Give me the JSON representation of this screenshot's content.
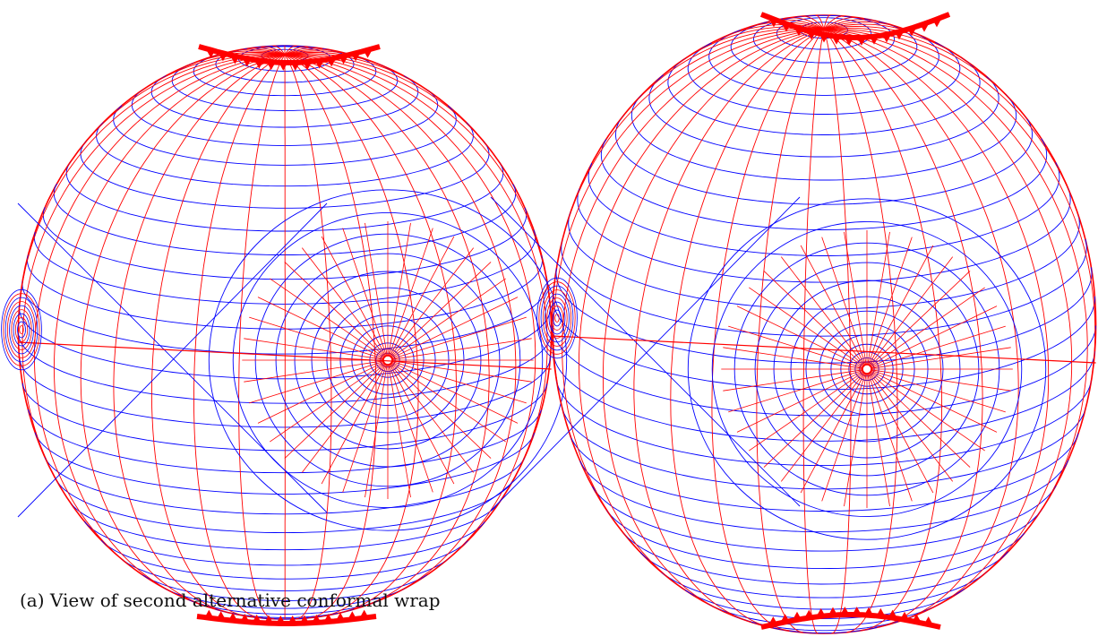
{
  "figure": {
    "caption": "(a) View of second alternative conformal wrap",
    "colors": {
      "family_a": "#0000ff",
      "family_b": "#ff0000",
      "markers": "#ff0000",
      "background": "#ffffff"
    },
    "panels": [
      {
        "id": "left-view"
      },
      {
        "id": "right-view"
      }
    ]
  }
}
